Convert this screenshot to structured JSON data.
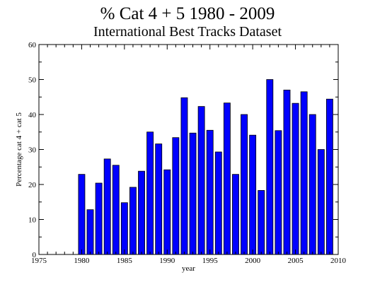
{
  "chart_data": {
    "type": "bar",
    "title": "% Cat 4 + 5 1980 - 2009",
    "subtitle": "International Best Tracks Dataset",
    "xlabel": "year",
    "ylabel": "Percentage cat 4 + cat 5",
    "xlim": [
      1975,
      2010
    ],
    "ylim": [
      0,
      60
    ],
    "xticks": [
      1975,
      1980,
      1985,
      1990,
      1995,
      2000,
      2005,
      2010
    ],
    "yticks": [
      0,
      10,
      20,
      30,
      40,
      50,
      60
    ],
    "grid": false,
    "bar_color": "#0000ff",
    "x": [
      1980,
      1981,
      1982,
      1983,
      1984,
      1985,
      1986,
      1987,
      1988,
      1989,
      1990,
      1991,
      1992,
      1993,
      1994,
      1995,
      1996,
      1997,
      1998,
      1999,
      2000,
      2001,
      2002,
      2003,
      2004,
      2005,
      2006,
      2007,
      2008,
      2009
    ],
    "values": [
      22.9,
      12.8,
      20.4,
      27.3,
      25.5,
      14.8,
      19.2,
      23.8,
      35.0,
      31.6,
      24.2,
      33.4,
      44.8,
      34.7,
      42.3,
      35.5,
      29.3,
      43.3,
      22.9,
      40.0,
      34.1,
      18.3,
      50.0,
      35.4,
      47.0,
      43.2,
      46.5,
      40.0,
      30.0,
      44.4
    ]
  }
}
